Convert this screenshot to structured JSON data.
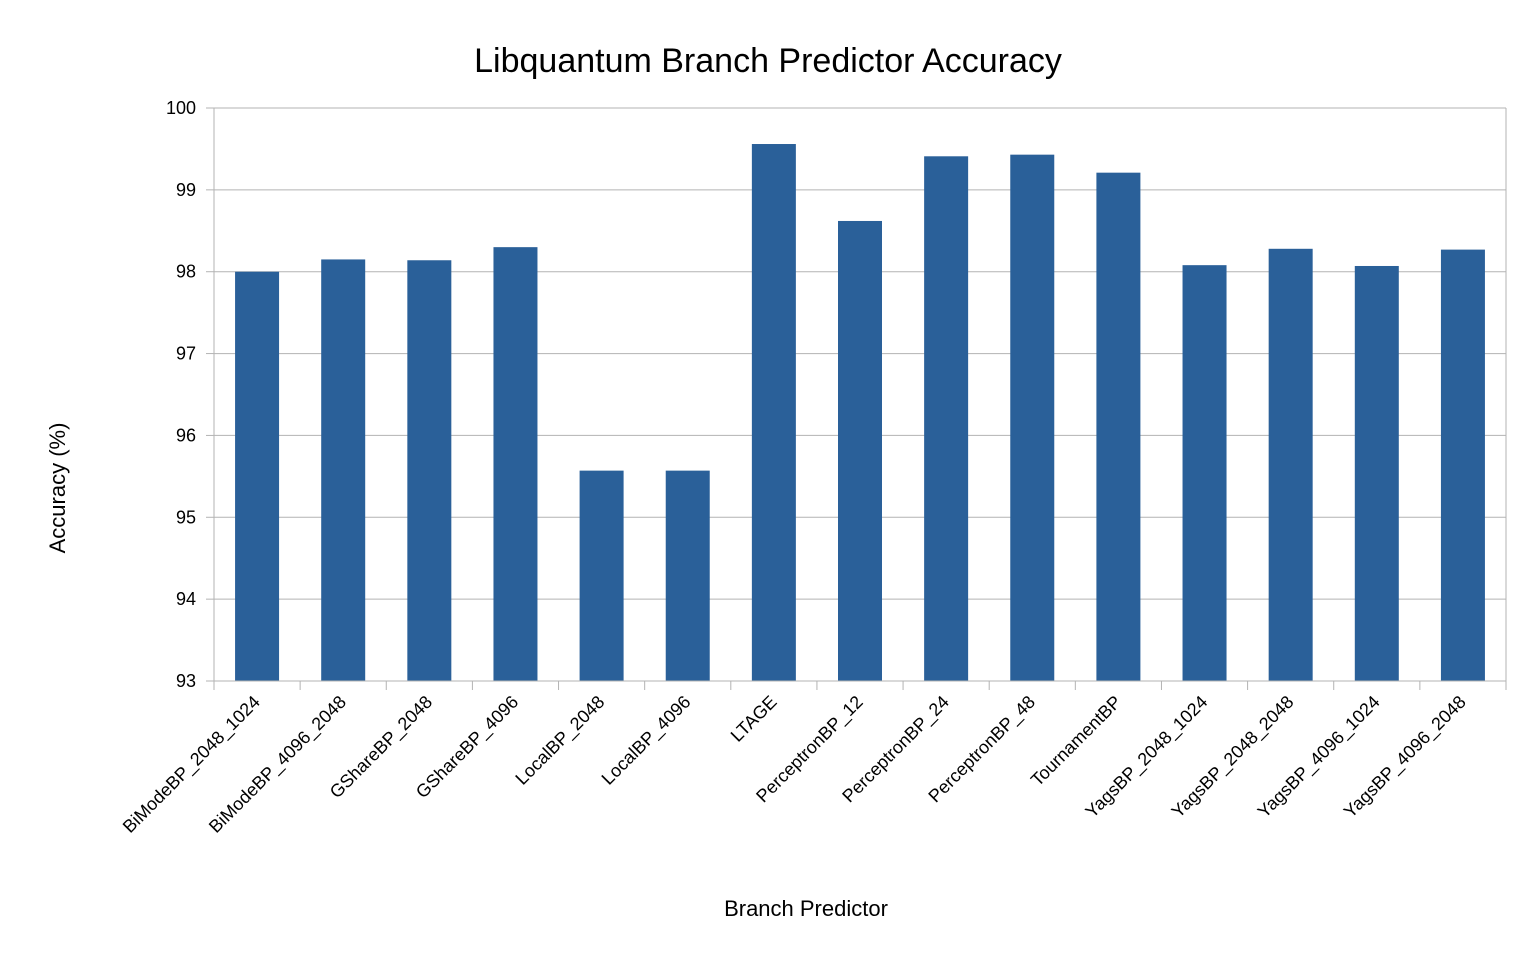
{
  "chart_data": {
    "type": "bar",
    "title": "Libquantum Branch Predictor Accuracy",
    "xlabel": "Branch Predictor",
    "ylabel": "Accuracy (%)",
    "ylim": [
      93,
      100
    ],
    "yticks": [
      93,
      94,
      95,
      96,
      97,
      98,
      99,
      100
    ],
    "grid": true,
    "legend": "none",
    "bar_color": "#2a6099",
    "grid_color": "#b3b3b3",
    "categories": [
      "BiModeBP_2048_1024",
      "BiModeBP_4096_2048",
      "GShareBP_2048",
      "GShareBP_4096",
      "LocalBP_2048",
      "LocalBP_4096",
      "LTAGE",
      "PerceptronBP_12",
      "PerceptronBP_24",
      "PerceptronBP_48",
      "TournamentBP",
      "YagsBP_2048_1024",
      "YagsBP_2048_2048",
      "YagsBP_4096_1024",
      "YagsBP_4096_2048"
    ],
    "values": [
      98.0,
      98.15,
      98.14,
      98.3,
      95.57,
      95.57,
      99.56,
      98.62,
      99.41,
      99.43,
      99.21,
      98.08,
      98.28,
      98.07,
      98.27
    ]
  }
}
